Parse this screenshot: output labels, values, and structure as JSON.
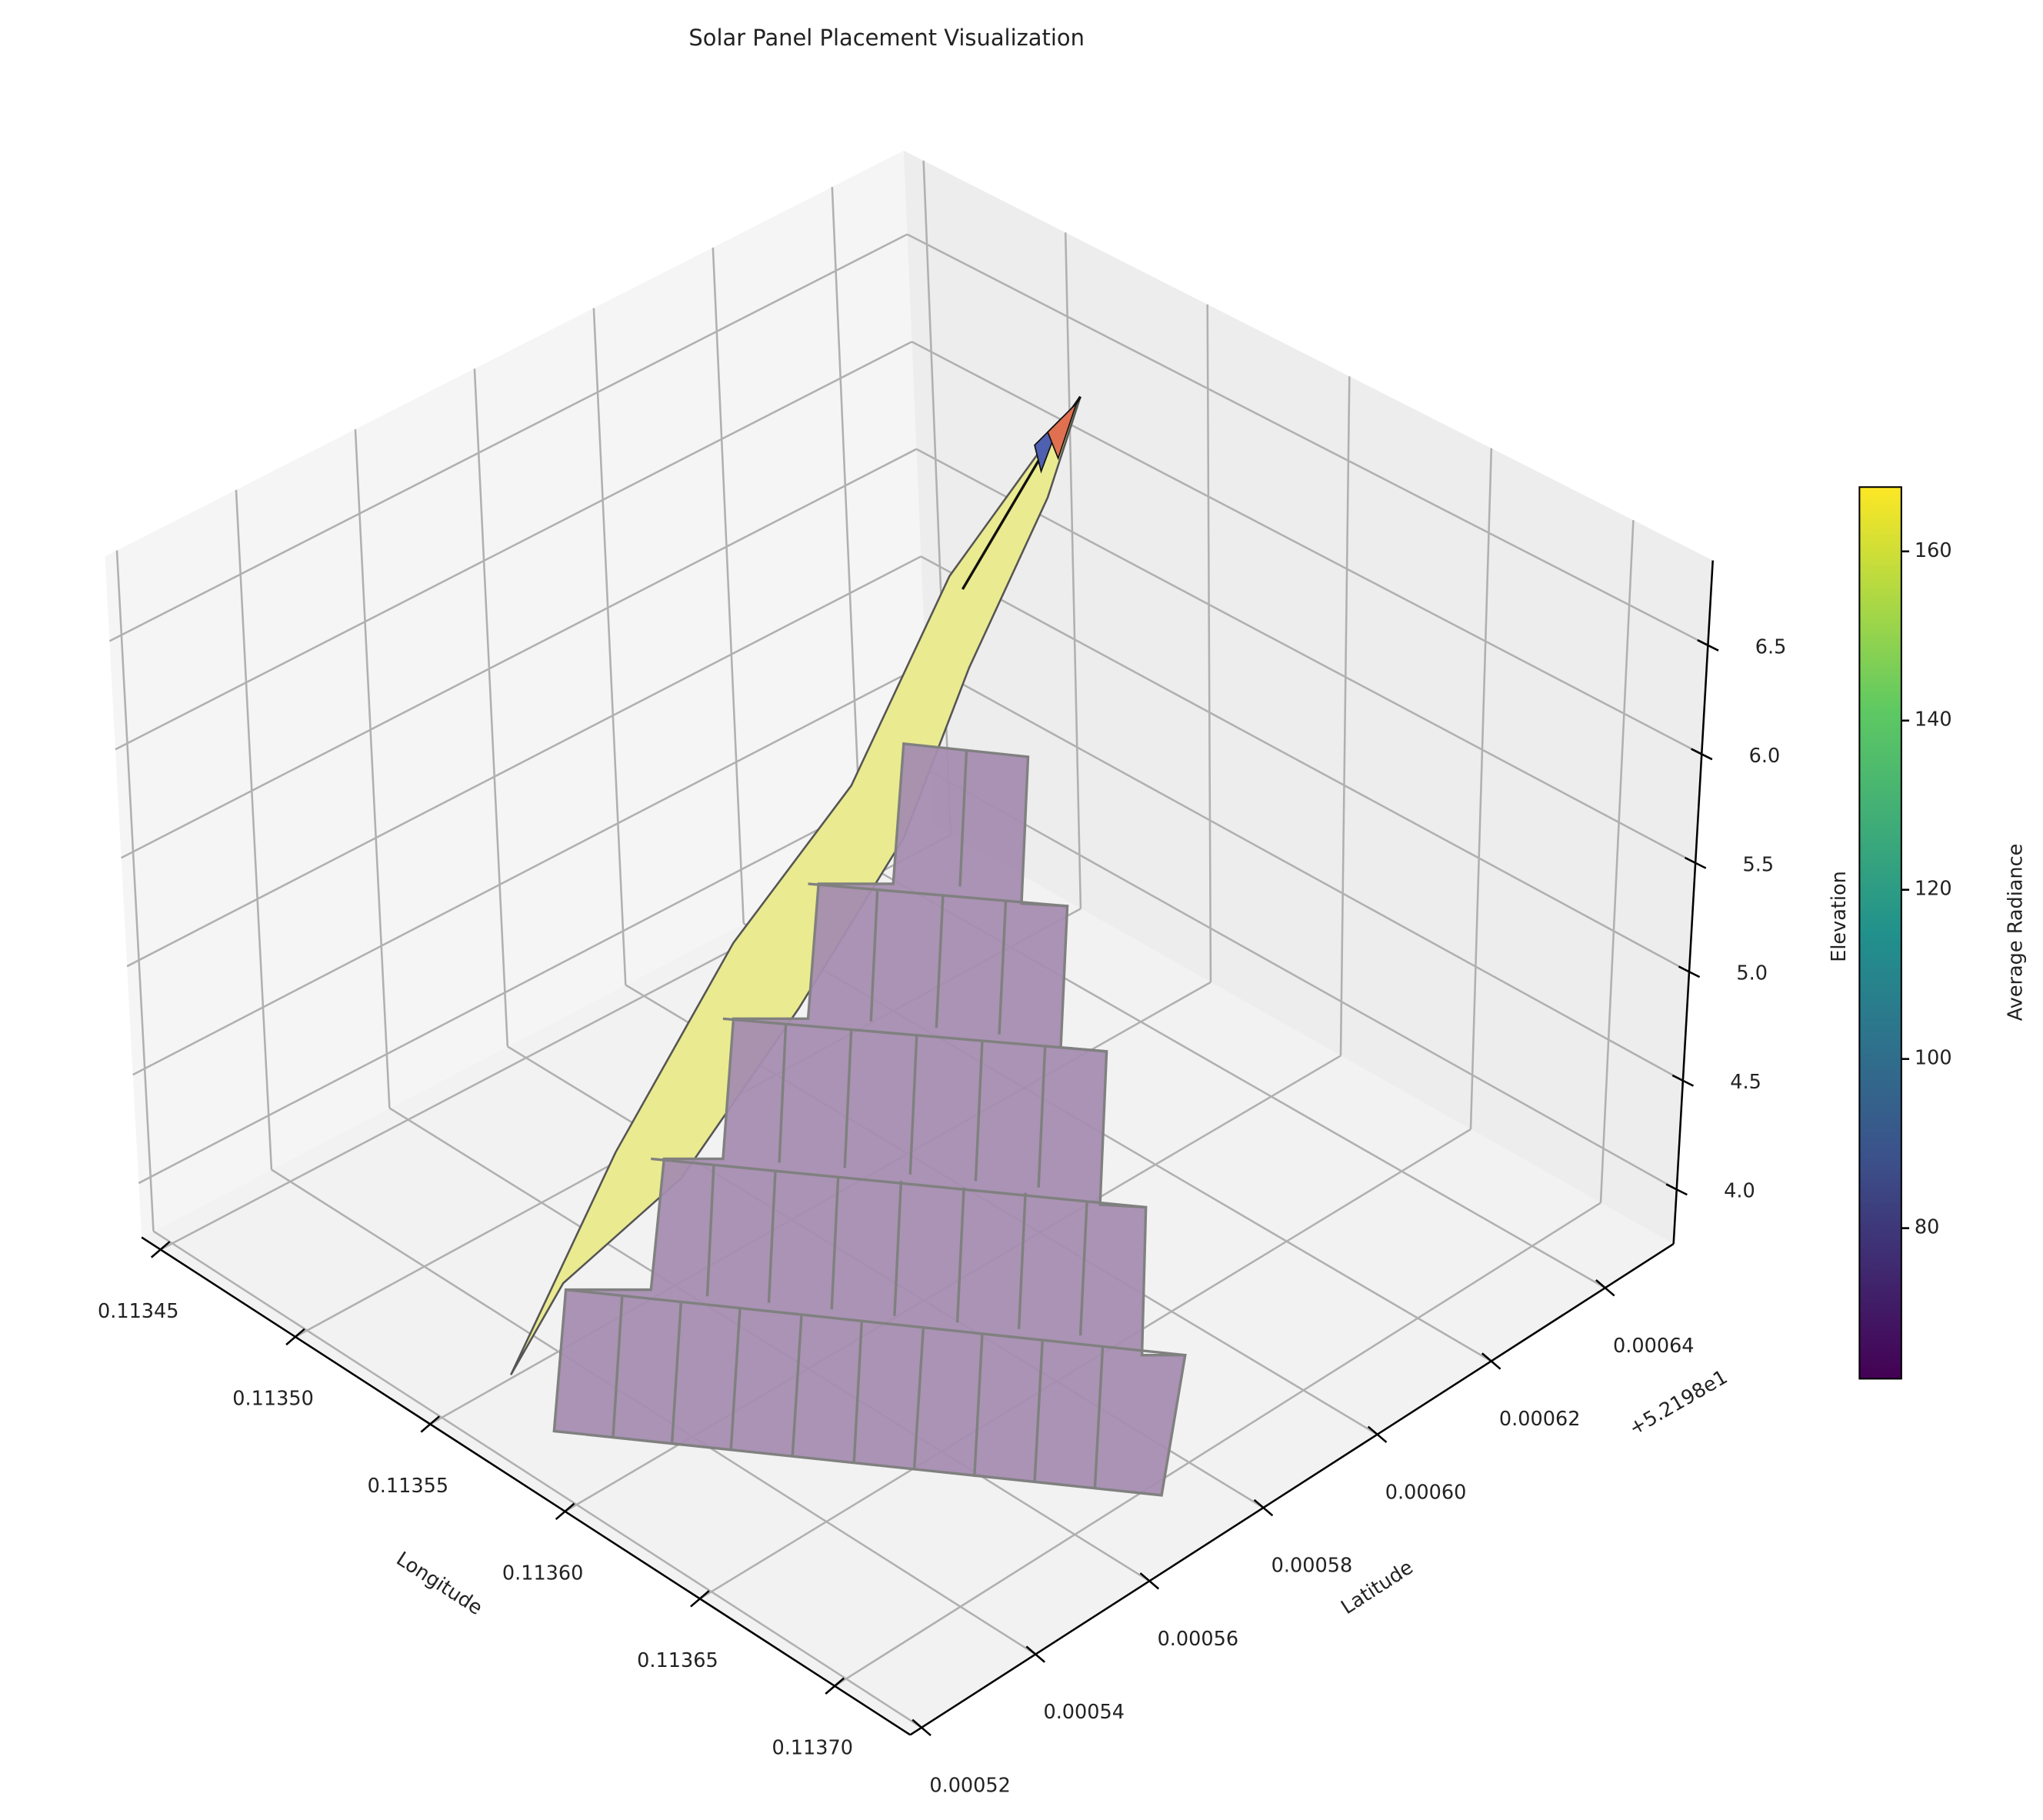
{
  "chart_data": {
    "type": "surface3d",
    "title": "Solar Panel Placement Visualization",
    "xlabel": "Longitude",
    "ylabel": "Latitude",
    "zlabel": "Elevation",
    "xlim": [
      0.113443,
      0.113728
    ],
    "xticks": [
      0.11345,
      {
        "value": 0.1135,
        "label": "0.11350"
      },
      0.11355,
      {
        "value": 0.1136,
        "label": "0.11360"
      },
      0.11365,
      {
        "value": 0.1137,
        "label": "0.11370"
      }
    ],
    "ylim": [
      0.000518,
      0.000652
    ],
    "yticks": [
      0.00052,
      0.00054,
      0.00056,
      0.00058,
      {
        "value": 0.0006,
        "label": "0.00060"
      },
      0.00062,
      0.00064
    ],
    "y_offset_label": "+5.2198e1",
    "zlim": [
      3.75,
      6.89
    ],
    "zticks": [
      {
        "value": 4,
        "label": "4.0"
      },
      4.5,
      {
        "value": 5,
        "label": "5.0"
      },
      5.5,
      {
        "value": 6,
        "label": "6.0"
      },
      6.5
    ],
    "colorbar": {
      "label": "Average Radiance",
      "lim": [
        62.2,
        167.6
      ],
      "ticks": [
        80,
        100,
        120,
        140,
        160
      ],
      "colormap": "viridis"
    },
    "grid": true
  }
}
